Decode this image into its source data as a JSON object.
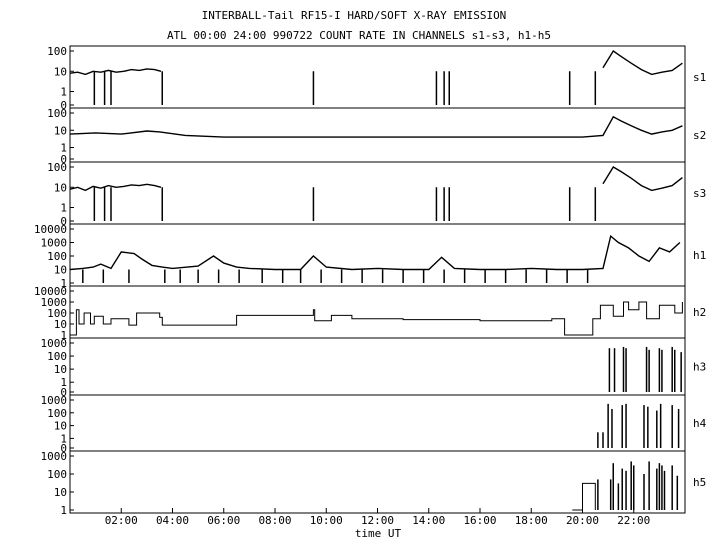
{
  "title": "INTERBALL-Tail RF15-I HARD/SOFT X-RAY EMISSION",
  "subtitle": "ATL 00:00 24:00 990722  COUNT RATE IN CHANNELS s1-s3, h1-h5",
  "chart_data": {
    "type": "line",
    "title": "INTERBALL-Tail RF15-I HARD/SOFT X-RAY EMISSION",
    "subtitle": "ATL 00:00 24:00 990722  COUNT RATE IN CHANNELS s1-s3, h1-h5",
    "xlabel": "time UT",
    "xlim_hours": [
      0,
      24
    ],
    "x_ticks": [
      "02:00",
      "04:00",
      "06:00",
      "08:00",
      "10:00",
      "12:00",
      "14:00",
      "16:00",
      "18:00",
      "20:00",
      "22:00"
    ],
    "y_scale": "log",
    "grid": false,
    "panels": [
      {
        "name": "s1",
        "ylim_top": 100,
        "y_ticks": [
          "100",
          "10",
          "1",
          "0"
        ],
        "series": {
          "name": "s1",
          "segments": [
            {
              "t": [
                0.0,
                0.3,
                0.6,
                0.9,
                1.2,
                1.5,
                1.8,
                2.1,
                2.4,
                2.7,
                3.0,
                3.3,
                3.55
              ],
              "v": [
                8,
                9,
                7,
                10,
                9,
                11,
                9,
                10,
                12,
                11,
                13,
                12,
                10
              ]
            },
            {
              "t": [
                20.8,
                21.2,
                21.5,
                21.9,
                22.3,
                22.7,
                23.1,
                23.5,
                23.9
              ],
              "v": [
                15,
                100,
                55,
                25,
                12,
                7,
                9,
                11,
                25
              ]
            }
          ],
          "spikes": [
            [
              0.95,
              0
            ],
            [
              1.35,
              0
            ],
            [
              1.6,
              0
            ],
            [
              3.6,
              0
            ],
            [
              9.5,
              10
            ],
            [
              14.3,
              10
            ],
            [
              14.6,
              10
            ],
            [
              14.8,
              10
            ],
            [
              19.5,
              10
            ],
            [
              20.5,
              10
            ]
          ]
        }
      },
      {
        "name": "s2",
        "ylim_top": 100,
        "y_ticks": [
          "100",
          "10",
          "1",
          "0"
        ],
        "series": {
          "name": "s2",
          "segments": [
            {
              "t": [
                0.0,
                1.0,
                2.0,
                3.0,
                3.5,
                4.5,
                6.0,
                8.0,
                10.0,
                12.0,
                14.0,
                16.0,
                18.0,
                20.0,
                20.8,
                21.2,
                21.5,
                21.9,
                22.3,
                22.7,
                23.1,
                23.5,
                23.9
              ],
              "v": [
                6,
                7,
                6,
                9,
                8,
                5,
                4,
                4,
                4,
                4,
                4,
                4,
                4,
                4,
                5,
                60,
                35,
                18,
                10,
                6,
                8,
                10,
                18
              ]
            }
          ],
          "spikes": []
        }
      },
      {
        "name": "s3",
        "ylim_top": 100,
        "y_ticks": [
          "100",
          "10",
          "1",
          "0"
        ],
        "series": {
          "name": "s3",
          "segments": [
            {
              "t": [
                0.0,
                0.3,
                0.6,
                0.9,
                1.2,
                1.5,
                1.8,
                2.1,
                2.4,
                2.7,
                3.0,
                3.3,
                3.55
              ],
              "v": [
                8,
                10,
                7,
                11,
                9,
                12,
                10,
                11,
                13,
                12,
                14,
                12,
                10
              ]
            },
            {
              "t": [
                20.8,
                21.2,
                21.5,
                21.9,
                22.3,
                22.7,
                23.1,
                23.5,
                23.9
              ],
              "v": [
                15,
                100,
                60,
                28,
                12,
                7,
                9,
                12,
                30
              ]
            }
          ],
          "spikes": [
            [
              0.95,
              0
            ],
            [
              1.35,
              0
            ],
            [
              1.6,
              0
            ],
            [
              3.6,
              0
            ],
            [
              9.5,
              10
            ],
            [
              14.3,
              10
            ],
            [
              14.6,
              10
            ],
            [
              14.8,
              10
            ],
            [
              19.5,
              10
            ],
            [
              20.5,
              10
            ]
          ]
        }
      },
      {
        "name": "h1",
        "ylim_top": 10000,
        "y_ticks": [
          "10000",
          "1000",
          "100",
          "10",
          "1"
        ],
        "series": {
          "name": "h1",
          "segments": [
            {
              "t": [
                0.0,
                0.5,
                0.9,
                1.2,
                1.6,
                2.0,
                2.5,
                2.8,
                3.2,
                3.6,
                4.0,
                5.0,
                5.6,
                6.0,
                6.5,
                7.0,
                8.0,
                9.0,
                9.5,
                10.0,
                11.0,
                12.0,
                13.0,
                14.0,
                14.5,
                15.0,
                16.0,
                17.0,
                18.0,
                19.0,
                20.0,
                20.8,
                21.1,
                21.4,
                21.8,
                22.2,
                22.6,
                23.0,
                23.4,
                23.8
              ],
              "v": [
                10,
                12,
                15,
                25,
                12,
                200,
                150,
                60,
                20,
                15,
                12,
                18,
                100,
                30,
                15,
                12,
                10,
                10,
                100,
                15,
                10,
                12,
                10,
                10,
                80,
                12,
                10,
                10,
                12,
                10,
                10,
                12,
                3000,
                1000,
                400,
                100,
                40,
                400,
                200,
                1000
              ]
            }
          ],
          "spikes": [
            [
              0.5,
              1
            ],
            [
              1.3,
              1
            ],
            [
              2.3,
              1
            ],
            [
              3.7,
              1
            ],
            [
              4.3,
              1
            ],
            [
              5.0,
              1
            ],
            [
              5.8,
              1
            ],
            [
              6.6,
              1
            ],
            [
              7.5,
              1
            ],
            [
              8.3,
              1
            ],
            [
              9.0,
              1
            ],
            [
              9.8,
              1
            ],
            [
              10.6,
              1
            ],
            [
              11.4,
              1
            ],
            [
              12.2,
              1
            ],
            [
              13.0,
              1
            ],
            [
              13.8,
              1
            ],
            [
              14.6,
              1
            ],
            [
              15.4,
              1
            ],
            [
              16.2,
              1
            ],
            [
              17.0,
              1
            ],
            [
              17.8,
              1
            ],
            [
              18.6,
              1
            ],
            [
              19.4,
              1
            ],
            [
              20.2,
              1
            ]
          ]
        }
      },
      {
        "name": "h2",
        "ylim_top": 10000,
        "y_ticks": [
          "10000",
          "1000",
          "100",
          "10",
          "1"
        ],
        "series": {
          "name": "h2",
          "steps": [
            [
              0.0,
              1
            ],
            [
              0.25,
              200
            ],
            [
              0.35,
              10
            ],
            [
              0.55,
              100
            ],
            [
              0.8,
              10
            ],
            [
              0.95,
              50
            ],
            [
              1.3,
              10
            ],
            [
              1.6,
              30
            ],
            [
              2.3,
              8
            ],
            [
              2.6,
              100
            ],
            [
              3.5,
              40
            ],
            [
              3.6,
              8
            ],
            [
              6.5,
              60
            ],
            [
              9.5,
              200
            ],
            [
              9.55,
              20
            ],
            [
              10.2,
              60
            ],
            [
              11.0,
              30
            ],
            [
              12.0,
              30
            ],
            [
              13.0,
              25
            ],
            [
              16.0,
              20
            ],
            [
              18.8,
              30
            ],
            [
              19.3,
              1
            ],
            [
              20.2,
              1
            ],
            [
              20.4,
              30
            ],
            [
              20.7,
              500
            ],
            [
              21.2,
              50
            ],
            [
              21.6,
              1000
            ],
            [
              21.8,
              200
            ],
            [
              22.2,
              1000
            ],
            [
              22.5,
              30
            ],
            [
              23.0,
              500
            ],
            [
              23.6,
              100
            ],
            [
              23.9,
              1000
            ]
          ]
        }
      },
      {
        "name": "h3",
        "ylim_top": 1000,
        "y_ticks": [
          "1000",
          "100",
          "10",
          "1",
          "0"
        ],
        "series": {
          "name": "h3",
          "spikes": [
            [
              21.05,
              400
            ],
            [
              21.25,
              400
            ],
            [
              21.6,
              500
            ],
            [
              21.7,
              400
            ],
            [
              22.5,
              500
            ],
            [
              22.6,
              300
            ],
            [
              23.0,
              400
            ],
            [
              23.1,
              300
            ],
            [
              23.5,
              500
            ],
            [
              23.6,
              300
            ],
            [
              23.85,
              200
            ]
          ]
        }
      },
      {
        "name": "h4",
        "ylim_top": 1000,
        "y_ticks": [
          "1000",
          "100",
          "10",
          "1",
          "0"
        ],
        "series": {
          "name": "h4",
          "spikes": [
            [
              20.6,
              3
            ],
            [
              20.8,
              3
            ],
            [
              21.0,
              500
            ],
            [
              21.15,
              200
            ],
            [
              21.55,
              400
            ],
            [
              21.7,
              500
            ],
            [
              22.4,
              400
            ],
            [
              22.55,
              300
            ],
            [
              22.9,
              150
            ],
            [
              23.05,
              500
            ],
            [
              23.5,
              400
            ],
            [
              23.75,
              200
            ]
          ]
        }
      },
      {
        "name": "h5",
        "ylim_top": 1000,
        "y_ticks": [
          "1000",
          "100",
          "10",
          "1"
        ],
        "series": {
          "name": "h5",
          "steps": [
            [
              19.6,
              1
            ],
            [
              20.0,
              30
            ],
            [
              20.45,
              30
            ],
            [
              20.5,
              1
            ]
          ],
          "spikes": [
            [
              20.6,
              50
            ],
            [
              21.1,
              50
            ],
            [
              21.2,
              400
            ],
            [
              21.4,
              30
            ],
            [
              21.55,
              200
            ],
            [
              21.7,
              150
            ],
            [
              21.9,
              500
            ],
            [
              22.0,
              300
            ],
            [
              22.4,
              100
            ],
            [
              22.6,
              500
            ],
            [
              22.9,
              200
            ],
            [
              23.0,
              400
            ],
            [
              23.1,
              300
            ],
            [
              23.2,
              150
            ],
            [
              23.5,
              300
            ],
            [
              23.7,
              80
            ]
          ]
        }
      }
    ]
  }
}
